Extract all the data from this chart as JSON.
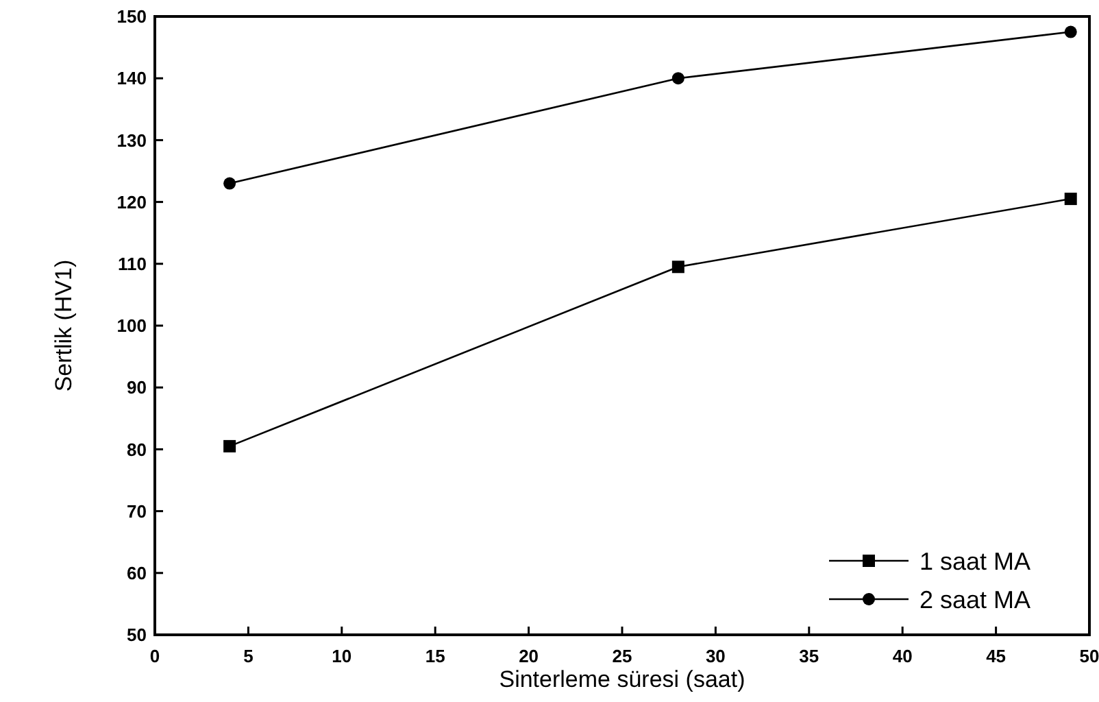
{
  "chart_data": {
    "type": "line",
    "xlabel": "Sinterleme süresi (saat)",
    "ylabel": "Sertlik (HV1)",
    "xlim": [
      0,
      50
    ],
    "xticks": [
      0,
      5,
      10,
      15,
      20,
      25,
      30,
      35,
      40,
      45,
      50
    ],
    "ylim": [
      50,
      150
    ],
    "yticks": [
      50,
      60,
      70,
      80,
      90,
      100,
      110,
      120,
      130,
      140,
      150
    ],
    "grid": false,
    "legend": "bottom right",
    "line_style": "solid",
    "series": [
      {
        "name": "1 saat MA",
        "color": "#000000",
        "marker": "square",
        "x": [
          4,
          28,
          49
        ],
        "values": [
          80.5,
          109.5,
          120.5
        ]
      },
      {
        "name": "2 saat MA",
        "color": "#000000",
        "marker": "circle",
        "x": [
          4,
          28,
          49
        ],
        "values": [
          123,
          140,
          147.5
        ]
      }
    ]
  }
}
